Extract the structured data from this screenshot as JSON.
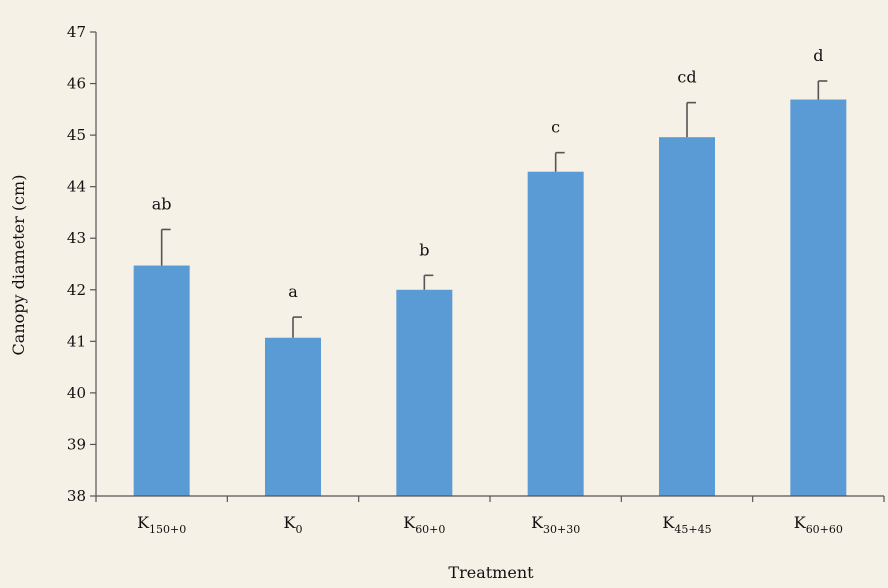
{
  "chart_data": {
    "type": "bar",
    "xlabel": "Treatment",
    "ylabel": "Canopy diameter  (cm)",
    "ylim": [
      38,
      47
    ],
    "yticks": [
      "38",
      "39",
      "40",
      "41",
      "42",
      "43",
      "44",
      "45",
      "46",
      "47"
    ],
    "grid": false,
    "categories": [
      {
        "main": "K",
        "sub": "150+0"
      },
      {
        "main": "K",
        "sub": "0"
      },
      {
        "main": "K",
        "sub": "60+0"
      },
      {
        "main": "K",
        "sub": "30+30"
      },
      {
        "main": "K",
        "sub": "45+45"
      },
      {
        "main": "K",
        "sub": "60+60"
      }
    ],
    "values": [
      42.47,
      41.07,
      42.0,
      44.29,
      44.96,
      45.69
    ],
    "error_upper": [
      0.7,
      0.4,
      0.28,
      0.37,
      0.67,
      0.36
    ],
    "significance_labels": [
      "ab",
      "a",
      "b",
      "c",
      "cd",
      "d"
    ],
    "bar_color": "#5b9bd5",
    "errorbar_color": "#555555",
    "background_color": "#f5f1e6"
  }
}
